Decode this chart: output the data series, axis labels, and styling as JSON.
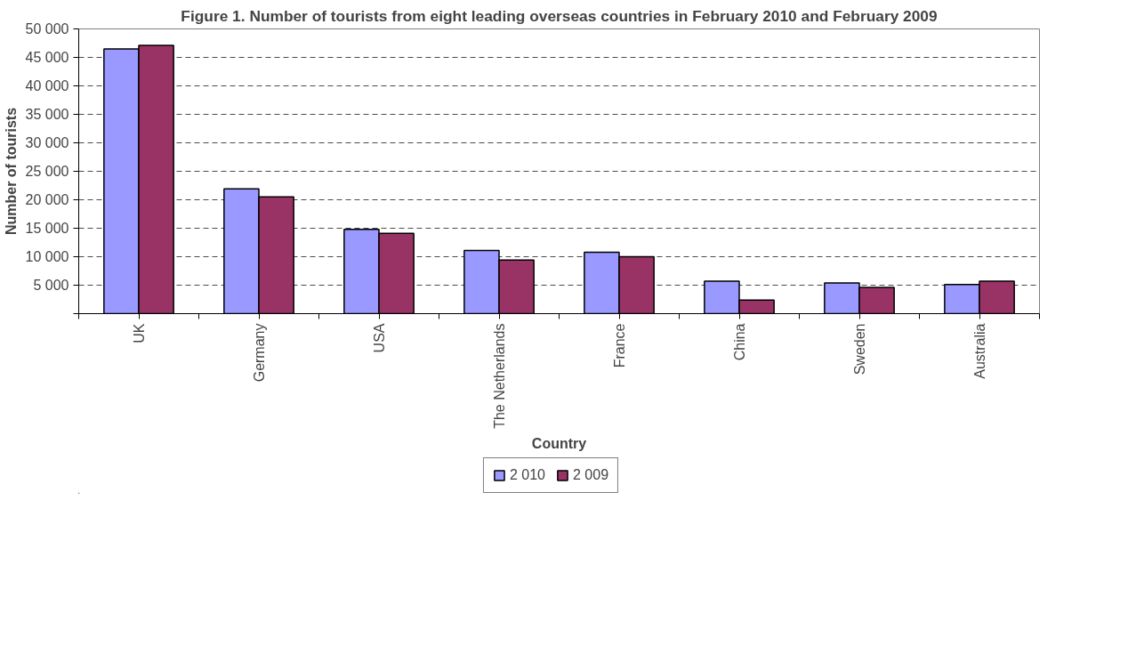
{
  "chart_data": {
    "type": "bar",
    "title": "Figure 1. Number of tourists from eight leading overseas countries in February 2010 and February 2009",
    "xlabel": "Country",
    "ylabel": "Number of tourists",
    "categories": [
      "UK",
      "Germany",
      "USA",
      "The Netherlands",
      "France",
      "China",
      "Sweden",
      "Australia"
    ],
    "series": [
      {
        "name": "2 010",
        "color": "#9999ff",
        "values": [
          46500,
          21900,
          14800,
          11100,
          10800,
          5700,
          5400,
          5100
        ]
      },
      {
        "name": "2 009",
        "color": "#993366",
        "values": [
          47100,
          20500,
          14100,
          9400,
          10000,
          2400,
          4600,
          5700
        ]
      }
    ],
    "ylim": [
      0,
      50000
    ],
    "yticks": [
      {
        "value": 0,
        "label": null
      },
      {
        "value": 5000,
        "label": "5 000"
      },
      {
        "value": 10000,
        "label": "10 000"
      },
      {
        "value": 15000,
        "label": "15 000"
      },
      {
        "value": 20000,
        "label": "20 000"
      },
      {
        "value": 25000,
        "label": "25 000"
      },
      {
        "value": 30000,
        "label": "30 000"
      },
      {
        "value": 35000,
        "label": "35 000"
      },
      {
        "value": 40000,
        "label": "40 000"
      },
      {
        "value": 45000,
        "label": "45 000"
      },
      {
        "value": 50000,
        "label": "50 000"
      }
    ],
    "grid": "y",
    "line_style": "dashed",
    "legend": "bottom"
  }
}
